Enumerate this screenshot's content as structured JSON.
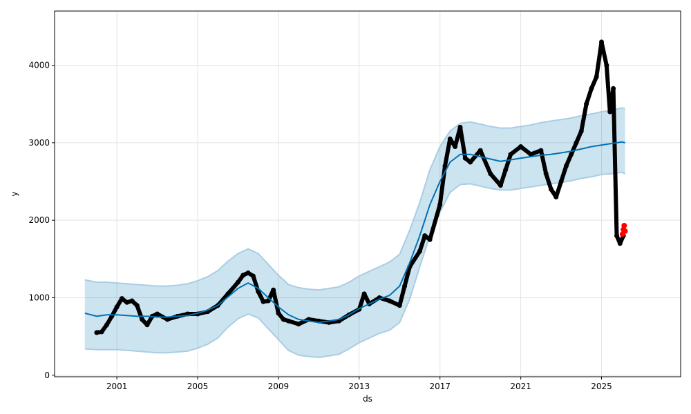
{
  "chart_data": {
    "type": "line",
    "title": "",
    "xlabel": "ds",
    "ylabel": "y",
    "xlim": [
      "1997-12-01",
      "2028-12-01"
    ],
    "ylim": [
      -20,
      4700
    ],
    "grid": true,
    "x_ticks": [
      "2001",
      "2005",
      "2009",
      "2013",
      "2017",
      "2021",
      "2025"
    ],
    "y_ticks": [
      "0",
      "1000",
      "2000",
      "3000",
      "4000"
    ],
    "colors": {
      "observed": "#000000",
      "forecast": "#0072B2",
      "band": "#0072B2",
      "band_edge": "#a9cde3",
      "anomaly": "#ff0000",
      "grid": "#e3e3e3"
    },
    "series": [
      {
        "role": "observed",
        "x": [
          "2000-01-01",
          "2000-04-01",
          "2000-07-01",
          "2000-10-01",
          "2001-01-01",
          "2001-04-01",
          "2001-07-01",
          "2001-10-01",
          "2002-01-01",
          "2002-04-01",
          "2002-07-01",
          "2002-10-01",
          "2003-01-01",
          "2003-07-01",
          "2004-01-01",
          "2004-07-01",
          "2005-01-01",
          "2005-07-01",
          "2006-01-01",
          "2006-07-01",
          "2007-01-01",
          "2007-04-01",
          "2007-07-01",
          "2007-10-01",
          "2008-01-01",
          "2008-04-01",
          "2008-07-01",
          "2008-10-01",
          "2009-01-01",
          "2009-04-01",
          "2009-07-01",
          "2010-01-01",
          "2010-07-01",
          "2011-01-01",
          "2011-07-01",
          "2012-01-01",
          "2012-07-01",
          "2013-01-01",
          "2013-04-01",
          "2013-07-01",
          "2014-01-01",
          "2014-07-01",
          "2015-01-01",
          "2015-04-01",
          "2015-07-01",
          "2016-01-01",
          "2016-04-01",
          "2016-07-01",
          "2017-01-01",
          "2017-04-01",
          "2017-07-01",
          "2017-10-01",
          "2018-01-01",
          "2018-04-01",
          "2018-07-01",
          "2019-01-01",
          "2019-07-01",
          "2020-01-01",
          "2020-04-01",
          "2020-07-01",
          "2021-01-01",
          "2021-07-01",
          "2022-01-01",
          "2022-04-01",
          "2022-07-01",
          "2022-10-01",
          "2023-01-01",
          "2023-04-01",
          "2023-07-01",
          "2023-10-01",
          "2024-01-01",
          "2024-04-01",
          "2024-07-01",
          "2024-10-01",
          "2025-01-01",
          "2025-04-01",
          "2025-06-01",
          "2025-08-01",
          "2025-10-01",
          "2025-12-01",
          "2026-02-01"
        ],
        "y": [
          550,
          560,
          650,
          760,
          880,
          990,
          940,
          960,
          900,
          720,
          650,
          760,
          790,
          720,
          760,
          790,
          790,
          820,
          900,
          1050,
          1200,
          1290,
          1320,
          1280,
          1080,
          950,
          960,
          1100,
          800,
          720,
          700,
          660,
          720,
          700,
          680,
          700,
          780,
          850,
          1050,
          920,
          1000,
          960,
          900,
          1150,
          1400,
          1600,
          1800,
          1750,
          2200,
          2700,
          3050,
          2950,
          3200,
          2800,
          2750,
          2900,
          2600,
          2450,
          2650,
          2850,
          2950,
          2850,
          2900,
          2600,
          2400,
          2300,
          2500,
          2700,
          2850,
          3000,
          3150,
          3500,
          3700,
          3850,
          4300,
          4000,
          3400,
          3700,
          1800,
          1700,
          1800
        ]
      },
      {
        "role": "forecast",
        "x": [
          "1999-06-01",
          "2000-01-01",
          "2000-07-01",
          "2001-01-01",
          "2001-07-01",
          "2002-01-01",
          "2002-07-01",
          "2003-01-01",
          "2003-07-01",
          "2004-01-01",
          "2004-07-01",
          "2005-01-01",
          "2005-07-01",
          "2006-01-01",
          "2006-07-01",
          "2007-01-01",
          "2007-07-01",
          "2008-01-01",
          "2008-07-01",
          "2009-01-01",
          "2009-07-01",
          "2010-01-01",
          "2010-07-01",
          "2011-01-01",
          "2011-07-01",
          "2012-01-01",
          "2012-07-01",
          "2013-01-01",
          "2013-07-01",
          "2014-01-01",
          "2014-07-01",
          "2015-01-01",
          "2015-07-01",
          "2016-01-01",
          "2016-07-01",
          "2017-01-01",
          "2017-07-01",
          "2018-01-01",
          "2018-07-01",
          "2019-01-01",
          "2019-07-01",
          "2020-01-01",
          "2020-07-01",
          "2021-01-01",
          "2021-07-01",
          "2022-01-01",
          "2022-07-01",
          "2023-01-01",
          "2023-07-01",
          "2024-01-01",
          "2024-07-01",
          "2025-01-01",
          "2025-07-01",
          "2026-01-01",
          "2026-03-01"
        ],
        "y": [
          800,
          760,
          780,
          780,
          770,
          760,
          760,
          750,
          750,
          760,
          770,
          800,
          840,
          900,
          1010,
          1120,
          1190,
          1120,
          1000,
          880,
          780,
          720,
          700,
          680,
          700,
          720,
          780,
          860,
          920,
          980,
          1030,
          1150,
          1450,
          1800,
          2200,
          2500,
          2750,
          2850,
          2850,
          2820,
          2790,
          2760,
          2780,
          2800,
          2820,
          2840,
          2850,
          2870,
          2890,
          2920,
          2950,
          2970,
          2990,
          3010,
          3000
        ]
      },
      {
        "role": "band",
        "x": [
          "1999-06-01",
          "2000-01-01",
          "2000-07-01",
          "2001-01-01",
          "2001-07-01",
          "2002-01-01",
          "2002-07-01",
          "2003-01-01",
          "2003-07-01",
          "2004-01-01",
          "2004-07-01",
          "2005-01-01",
          "2005-07-01",
          "2006-01-01",
          "2006-07-01",
          "2007-01-01",
          "2007-07-01",
          "2008-01-01",
          "2008-07-01",
          "2009-01-01",
          "2009-07-01",
          "2010-01-01",
          "2010-07-01",
          "2011-01-01",
          "2011-07-01",
          "2012-01-01",
          "2012-07-01",
          "2013-01-01",
          "2013-07-01",
          "2014-01-01",
          "2014-07-01",
          "2015-01-01",
          "2015-07-01",
          "2016-01-01",
          "2016-07-01",
          "2017-01-01",
          "2017-07-01",
          "2018-01-01",
          "2018-07-01",
          "2019-01-01",
          "2019-07-01",
          "2020-01-01",
          "2020-07-01",
          "2021-01-01",
          "2021-07-01",
          "2022-01-01",
          "2022-07-01",
          "2023-01-01",
          "2023-07-01",
          "2024-01-01",
          "2024-07-01",
          "2025-01-01",
          "2025-07-01",
          "2026-01-01",
          "2026-03-01"
        ],
        "lower": [
          340,
          330,
          330,
          330,
          320,
          310,
          300,
          290,
          290,
          300,
          310,
          350,
          400,
          480,
          620,
          730,
          790,
          740,
          600,
          460,
          320,
          260,
          240,
          230,
          250,
          270,
          340,
          420,
          480,
          540,
          580,
          680,
          980,
          1400,
          1800,
          2100,
          2360,
          2460,
          2470,
          2440,
          2410,
          2390,
          2390,
          2410,
          2430,
          2450,
          2470,
          2490,
          2510,
          2540,
          2560,
          2590,
          2600,
          2620,
          2600
        ],
        "upper": [
          1230,
          1200,
          1200,
          1190,
          1180,
          1170,
          1160,
          1150,
          1150,
          1160,
          1180,
          1220,
          1270,
          1350,
          1470,
          1570,
          1630,
          1570,
          1430,
          1290,
          1170,
          1130,
          1110,
          1100,
          1120,
          1140,
          1200,
          1280,
          1340,
          1400,
          1460,
          1560,
          1870,
          2230,
          2650,
          2950,
          3150,
          3250,
          3270,
          3240,
          3210,
          3190,
          3190,
          3210,
          3230,
          3260,
          3280,
          3300,
          3320,
          3350,
          3370,
          3400,
          3420,
          3450,
          3440
        ]
      },
      {
        "role": "anomaly",
        "x": [
          "2026-01-15",
          "2026-02-01",
          "2026-02-15",
          "2026-03-01"
        ],
        "y": [
          1820,
          1880,
          1930,
          1860
        ]
      }
    ]
  }
}
